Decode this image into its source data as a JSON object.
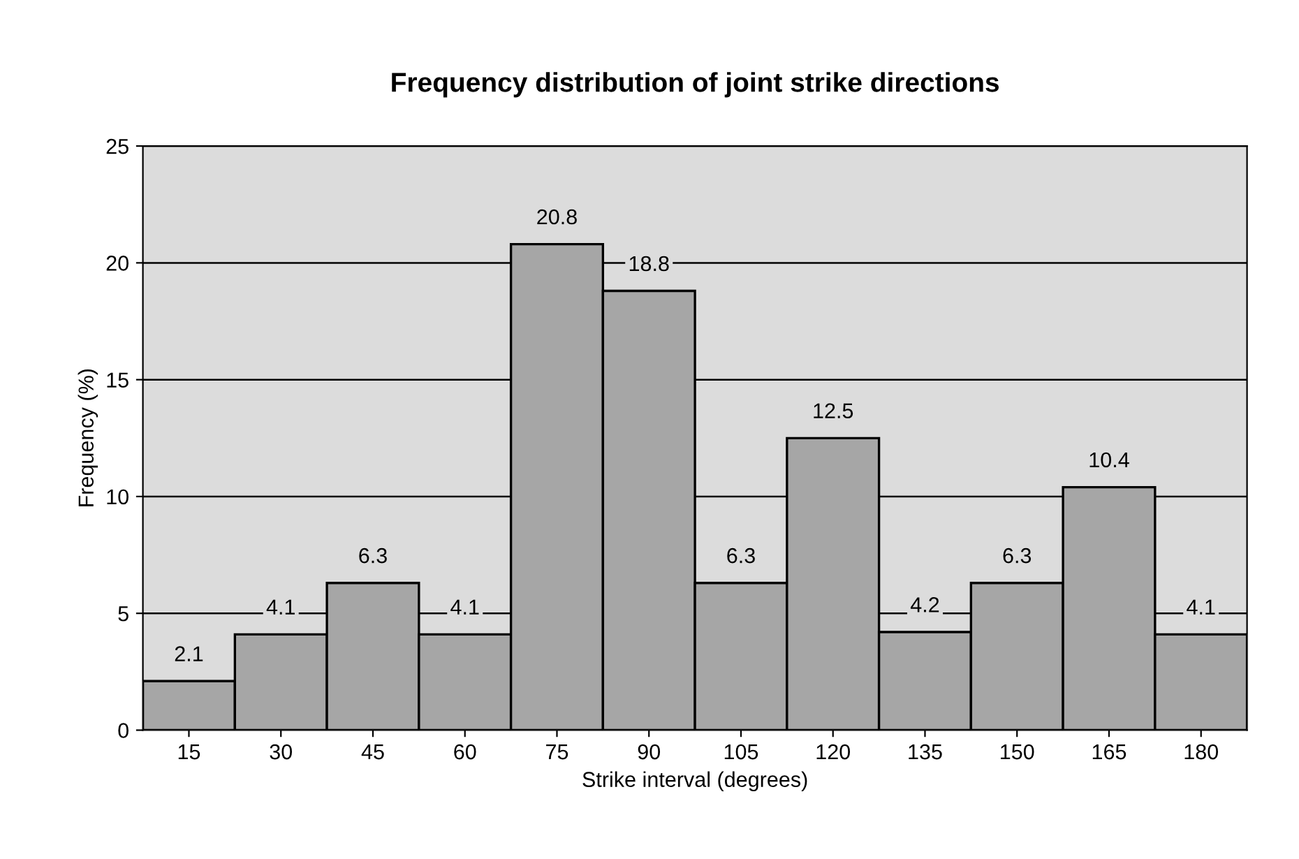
{
  "chart_data": {
    "type": "bar",
    "title": "Frequency distribution of joint strike directions",
    "xlabel": "Strike interval (degrees)",
    "ylabel": "Frequency (%)",
    "categories": [
      "15",
      "30",
      "45",
      "60",
      "75",
      "90",
      "105",
      "120",
      "135",
      "150",
      "165",
      "180"
    ],
    "values": [
      2.1,
      4.1,
      6.3,
      4.1,
      20.8,
      18.8,
      6.3,
      12.5,
      4.2,
      6.3,
      10.4,
      4.1
    ],
    "color": "#a6a6a6",
    "ylim": [
      0,
      25
    ],
    "yticks": [
      0,
      5,
      10,
      15,
      20,
      25
    ],
    "grid": "y",
    "data_labels": true
  }
}
